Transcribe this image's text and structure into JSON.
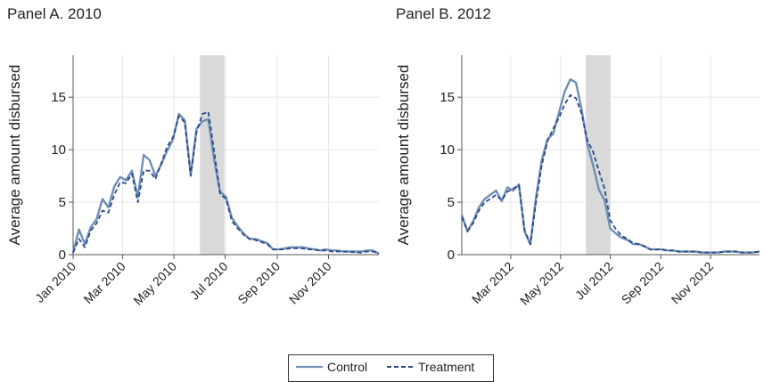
{
  "chart_data": [
    {
      "type": "line",
      "title": "Panel A. 2010",
      "ylabel": "Average amount disbursed",
      "xlabel": "",
      "ylim": [
        0,
        19
      ],
      "xlim": [
        "2010-01-01",
        "2010-12-31"
      ],
      "yticks": [
        0,
        5,
        10,
        15
      ],
      "xtick_labels": [
        "Jan 2010",
        "Mar 2010",
        "May 2010",
        "Jul 2010",
        "Sep 2010",
        "Nov 2010"
      ],
      "xtick_dates": [
        "2010-01-01",
        "2010-03-01",
        "2010-05-01",
        "2010-07-01",
        "2010-09-01",
        "2010-11-01"
      ],
      "grid": true,
      "shaded_region": [
        "2010-06-01",
        "2010-06-30"
      ],
      "x": [
        "2010-01-01",
        "2010-01-08",
        "2010-01-15",
        "2010-01-22",
        "2010-01-29",
        "2010-02-05",
        "2010-02-12",
        "2010-02-19",
        "2010-02-26",
        "2010-03-05",
        "2010-03-12",
        "2010-03-19",
        "2010-03-26",
        "2010-04-02",
        "2010-04-09",
        "2010-04-16",
        "2010-04-23",
        "2010-04-30",
        "2010-05-07",
        "2010-05-14",
        "2010-05-21",
        "2010-05-28",
        "2010-06-04",
        "2010-06-11",
        "2010-06-18",
        "2010-06-25",
        "2010-07-02",
        "2010-07-09",
        "2010-07-16",
        "2010-07-23",
        "2010-07-30",
        "2010-08-06",
        "2010-08-13",
        "2010-08-20",
        "2010-08-27",
        "2010-09-03",
        "2010-09-10",
        "2010-09-17",
        "2010-09-24",
        "2010-10-01",
        "2010-10-08",
        "2010-10-15",
        "2010-10-22",
        "2010-10-29",
        "2010-11-05",
        "2010-11-12",
        "2010-11-19",
        "2010-11-26",
        "2010-12-03",
        "2010-12-10",
        "2010-12-17",
        "2010-12-24",
        "2010-12-31"
      ],
      "series": [
        {
          "name": "Control",
          "color": "#6f8fb3",
          "dash": "solid",
          "values": [
            0.2,
            2.4,
            1.0,
            2.6,
            3.4,
            5.3,
            4.5,
            6.5,
            7.4,
            7.1,
            8.0,
            5.5,
            9.5,
            9.0,
            7.5,
            8.6,
            9.9,
            11.0,
            13.4,
            12.8,
            7.6,
            12.0,
            12.7,
            12.9,
            9.0,
            6.0,
            5.5,
            3.5,
            2.7,
            2.0,
            1.5,
            1.5,
            1.3,
            1.1,
            0.5,
            0.5,
            0.6,
            0.7,
            0.7,
            0.7,
            0.6,
            0.5,
            0.4,
            0.5,
            0.4,
            0.4,
            0.3,
            0.3,
            0.3,
            0.3,
            0.4,
            0.4,
            0.1
          ]
        },
        {
          "name": "Treatment",
          "color": "#2b4a8a",
          "dash": "dashed",
          "values": [
            0.2,
            1.5,
            0.7,
            2.3,
            3.0,
            4.2,
            4.0,
            5.7,
            6.9,
            6.8,
            7.7,
            5.0,
            8.0,
            8.0,
            7.2,
            8.7,
            10.3,
            11.2,
            13.2,
            12.6,
            7.5,
            11.7,
            13.4,
            13.6,
            9.8,
            5.8,
            5.3,
            3.2,
            2.5,
            1.9,
            1.5,
            1.4,
            1.2,
            1.0,
            0.5,
            0.5,
            0.5,
            0.6,
            0.6,
            0.6,
            0.5,
            0.5,
            0.4,
            0.4,
            0.3,
            0.3,
            0.3,
            0.3,
            0.2,
            0.2,
            0.3,
            0.3,
            0.1
          ]
        }
      ]
    },
    {
      "type": "line",
      "title": "Panel B. 2012",
      "ylabel": "Average amount disbursed",
      "xlabel": "",
      "ylim": [
        0,
        19
      ],
      "xlim": [
        "2012-01-01",
        "2012-12-31"
      ],
      "yticks": [
        0,
        5,
        10,
        15
      ],
      "xtick_labels": [
        "Mar 2012",
        "May 2012",
        "Jul 2012",
        "Sep 2012",
        "Nov 2012"
      ],
      "xtick_dates": [
        "2012-03-01",
        "2012-05-01",
        "2012-07-01",
        "2012-09-01",
        "2012-11-01"
      ],
      "grid": true,
      "shaded_region": [
        "2012-06-01",
        "2012-07-01"
      ],
      "x": [
        "2012-01-01",
        "2012-01-08",
        "2012-01-15",
        "2012-01-22",
        "2012-01-29",
        "2012-02-05",
        "2012-02-12",
        "2012-02-19",
        "2012-02-26",
        "2012-03-04",
        "2012-03-11",
        "2012-03-18",
        "2012-03-25",
        "2012-04-01",
        "2012-04-08",
        "2012-04-15",
        "2012-04-22",
        "2012-04-29",
        "2012-05-06",
        "2012-05-13",
        "2012-05-20",
        "2012-05-27",
        "2012-06-03",
        "2012-06-10",
        "2012-06-17",
        "2012-06-24",
        "2012-07-01",
        "2012-07-08",
        "2012-07-15",
        "2012-07-22",
        "2012-07-29",
        "2012-08-05",
        "2012-08-12",
        "2012-08-19",
        "2012-08-26",
        "2012-09-02",
        "2012-09-09",
        "2012-09-16",
        "2012-09-23",
        "2012-09-30",
        "2012-10-07",
        "2012-10-14",
        "2012-10-21",
        "2012-10-28",
        "2012-11-04",
        "2012-11-11",
        "2012-11-18",
        "2012-11-25",
        "2012-12-02",
        "2012-12-09",
        "2012-12-16",
        "2012-12-23",
        "2012-12-31"
      ],
      "series": [
        {
          "name": "Control",
          "color": "#6f8fb3",
          "dash": "solid",
          "values": [
            3.8,
            2.2,
            3.2,
            4.5,
            5.3,
            5.7,
            6.1,
            5.1,
            6.4,
            6.1,
            6.7,
            2.2,
            1.0,
            5.5,
            9.0,
            11.0,
            11.5,
            13.5,
            15.5,
            16.7,
            16.4,
            13.8,
            10.5,
            8.5,
            6.2,
            5.2,
            2.5,
            2.0,
            1.6,
            1.4,
            1.0,
            1.0,
            0.8,
            0.5,
            0.5,
            0.5,
            0.4,
            0.4,
            0.3,
            0.3,
            0.3,
            0.3,
            0.2,
            0.2,
            0.2,
            0.2,
            0.3,
            0.3,
            0.3,
            0.2,
            0.2,
            0.2,
            0.3
          ]
        },
        {
          "name": "Treatment",
          "color": "#2b4a8a",
          "dash": "dashed",
          "values": [
            3.6,
            2.3,
            3.0,
            4.2,
            5.0,
            5.3,
            5.7,
            5.2,
            6.0,
            6.3,
            6.6,
            2.3,
            1.0,
            5.0,
            8.5,
            10.8,
            12.0,
            13.0,
            14.3,
            15.2,
            14.9,
            13.4,
            10.9,
            9.8,
            8.0,
            6.3,
            3.3,
            2.4,
            1.8,
            1.5,
            1.1,
            1.0,
            0.8,
            0.5,
            0.5,
            0.5,
            0.4,
            0.4,
            0.3,
            0.3,
            0.3,
            0.3,
            0.2,
            0.2,
            0.2,
            0.2,
            0.3,
            0.3,
            0.3,
            0.2,
            0.2,
            0.2,
            0.3
          ]
        }
      ]
    }
  ],
  "legend": {
    "items": [
      {
        "label": "Control",
        "color": "#6f8fb3",
        "dash": "solid"
      },
      {
        "label": "Treatment",
        "color": "#2b4a8a",
        "dash": "dashed"
      }
    ]
  },
  "colors": {
    "shade": "#d9d9d9",
    "grid": "#e6e6e6",
    "axis": "#555555"
  }
}
